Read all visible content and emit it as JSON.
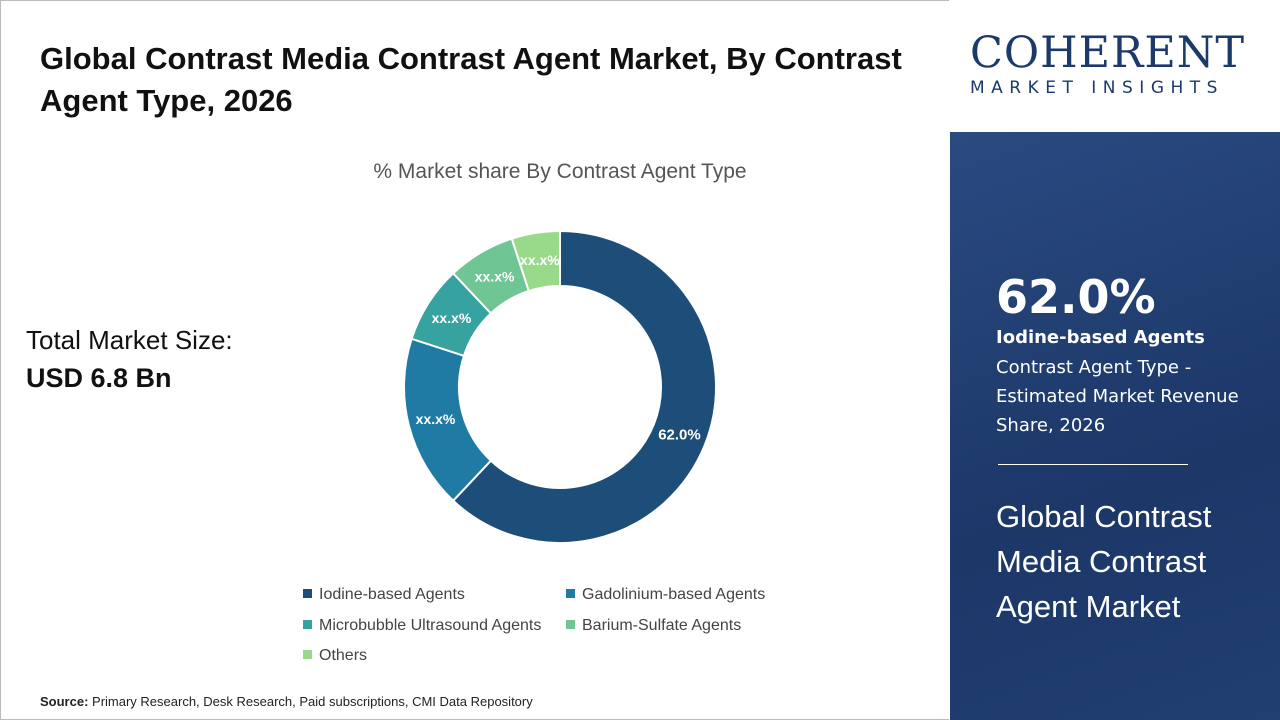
{
  "title": "Global Contrast Media Contrast Agent Market, By Contrast Agent Type, 2026",
  "total_market": {
    "label": "Total Market Size:",
    "value": "USD 6.8 Bn"
  },
  "source": {
    "label": "Source:",
    "text": "Primary Research, Desk Research, Paid subscriptions, CMI Data Repository"
  },
  "logo": {
    "name": "COHERENT",
    "tagline": "MARKET INSIGHTS"
  },
  "panel": {
    "percent": "62.0%",
    "segment": "Iodine-based Agents",
    "description": "Contrast Agent Type - Estimated Market Revenue Share, 2026",
    "market": "Global Contrast Media Contrast Agent Market"
  },
  "chart_data": {
    "type": "pie",
    "subtype": "donut",
    "title": "% Market share By Contrast Agent Type",
    "categories": [
      "Iodine-based Agents",
      "Gadolinium-based Agents",
      "Microbubble Ultrasound Agents",
      "Barium-Sulfate Agents",
      "Others"
    ],
    "values": [
      62.0,
      18,
      8,
      7,
      5
    ],
    "data_labels": [
      "62.0%",
      "xx.x%",
      "xx.x%",
      "xx.x%",
      "xx.x%"
    ],
    "colors": [
      "#1d4e79",
      "#1f7ba3",
      "#36a3a0",
      "#6fc694",
      "#98da8a"
    ],
    "legend_position": "bottom"
  }
}
